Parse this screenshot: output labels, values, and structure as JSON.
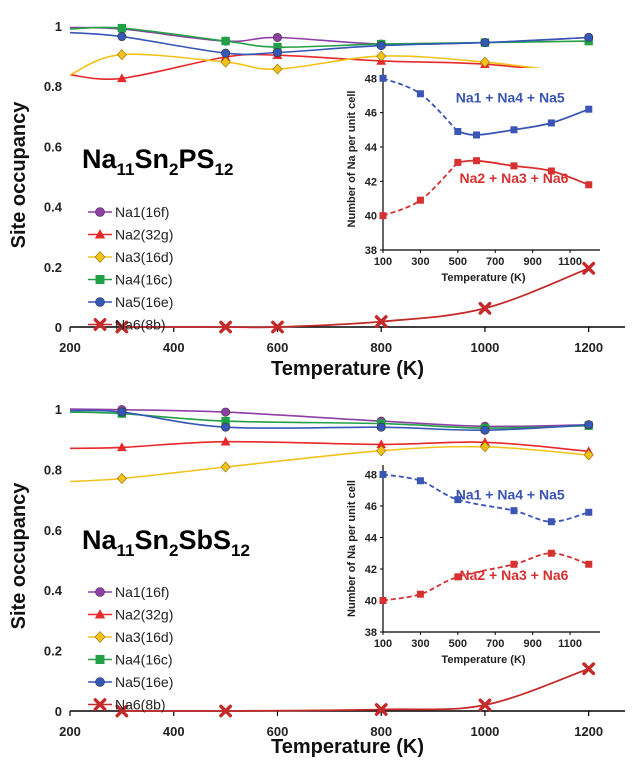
{
  "colors": {
    "Na1": "#8e3fa6",
    "Na2": "#e8282b",
    "Na3": "#f2c21b",
    "Na4": "#22a045",
    "Na5": "#3557b7",
    "Na6": "#c42a2a",
    "inset_upper": "#3a55b4",
    "inset_lower": "#d63031"
  },
  "chart_data": [
    {
      "type": "line",
      "compound": {
        "base": "Na",
        "s1": "11",
        "mid": "Sn",
        "s2": "2",
        "anion": "PS",
        "s3": "12"
      },
      "xlabel": "Temperature (K)",
      "ylabel": "Site occupancy",
      "xlim": [
        200,
        1270
      ],
      "ylim": [
        0,
        1.02
      ],
      "xticks": [
        "200",
        "400",
        "600",
        "800",
        "1000",
        "1200"
      ],
      "yticks": [
        "0",
        "0.2",
        "0.4",
        "0.6",
        "0.8",
        "1"
      ],
      "legend_position": "left",
      "series": [
        {
          "name": "Na1(16f)",
          "key": "Na1",
          "marker": "circle",
          "x": [
            200,
            300,
            500,
            600,
            800,
            1000,
            1200
          ],
          "y": [
            0.995,
            0.99,
            0.95,
            0.962,
            0.94,
            0.945,
            0.962
          ]
        },
        {
          "name": "Na2(32g)",
          "key": "Na2",
          "marker": "triangle",
          "x": [
            200,
            300,
            500,
            600,
            800,
            1000,
            1200
          ],
          "y": [
            0.838,
            0.826,
            0.897,
            0.903,
            0.884,
            0.873,
            0.838
          ]
        },
        {
          "name": "Na3(16d)",
          "key": "Na3",
          "marker": "diamond",
          "x": [
            200,
            300,
            500,
            600,
            800,
            1000,
            1200
          ],
          "y": [
            0.838,
            0.905,
            0.88,
            0.857,
            0.9,
            0.88,
            0.838
          ]
        },
        {
          "name": "Na4(16c)",
          "key": "Na4",
          "marker": "square",
          "x": [
            200,
            300,
            500,
            600,
            800,
            1000,
            1200
          ],
          "y": [
            0.99,
            0.993,
            0.95,
            0.93,
            0.94,
            0.945,
            0.95
          ]
        },
        {
          "name": "Na5(16e)",
          "key": "Na5",
          "marker": "circle",
          "x": [
            200,
            300,
            500,
            600,
            800,
            1000,
            1200
          ],
          "y": [
            0.978,
            0.965,
            0.91,
            0.912,
            0.935,
            0.945,
            0.962
          ]
        },
        {
          "name": "Na6(8b)",
          "key": "Na6",
          "marker": "x",
          "x": [
            300,
            500,
            600,
            800,
            1000,
            1200
          ],
          "y": [
            0.0,
            0.0,
            0.0,
            0.018,
            0.062,
            0.195
          ]
        }
      ],
      "inset": {
        "ylabel": "Number of Na per unit cell",
        "xlabel": "Temperature  (K)",
        "xlim": [
          100,
          1260
        ],
        "ylim": [
          38,
          48.6
        ],
        "xticks": [
          "100",
          "300",
          "500",
          "700",
          "900",
          "1100"
        ],
        "yticks": [
          "38",
          "40",
          "42",
          "44",
          "46",
          "48"
        ],
        "series": [
          {
            "name": "Na1 + Na4 + Na5",
            "key": "inset_upper",
            "x": [
              100,
              300,
              500,
              600,
              800,
              1000,
              1200
            ],
            "y": [
              48.0,
              47.1,
              44.9,
              44.7,
              45.0,
              45.4,
              46.2
            ],
            "dashed_until_index": 2
          },
          {
            "name": "Na2 + Na3 + Na6",
            "key": "inset_lower",
            "x": [
              100,
              300,
              500,
              600,
              800,
              1000,
              1200
            ],
            "y": [
              40.0,
              40.9,
              43.1,
              43.2,
              42.9,
              42.6,
              41.8
            ],
            "dashed_until_index": 2
          }
        ]
      }
    },
    {
      "type": "line",
      "compound": {
        "base": "Na",
        "s1": "11",
        "mid": "Sn",
        "s2": "2",
        "anion": "SbS",
        "s3": "12"
      },
      "xlabel": "Temperature (K)",
      "ylabel": "Site occupancy",
      "xlim": [
        200,
        1270
      ],
      "ylim": [
        0,
        1.03
      ],
      "xticks": [
        "200",
        "400",
        "600",
        "800",
        "1000",
        "1200"
      ],
      "yticks": [
        "0",
        "0.2",
        "0.4",
        "0.6",
        "0.8",
        "1"
      ],
      "legend_position": "left",
      "series": [
        {
          "name": "Na1(16f)",
          "key": "Na1",
          "marker": "circle",
          "x": [
            200,
            300,
            500,
            800,
            1000,
            1200
          ],
          "y": [
            1.0,
            0.998,
            0.99,
            0.96,
            0.943,
            0.948
          ]
        },
        {
          "name": "Na2(32g)",
          "key": "Na2",
          "marker": "triangle",
          "x": [
            200,
            300,
            500,
            800,
            1000,
            1200
          ],
          "y": [
            0.87,
            0.873,
            0.892,
            0.883,
            0.89,
            0.86
          ]
        },
        {
          "name": "Na3(16d)",
          "key": "Na3",
          "marker": "diamond",
          "x": [
            200,
            300,
            500,
            800,
            1000,
            1200
          ],
          "y": [
            0.76,
            0.77,
            0.808,
            0.862,
            0.875,
            0.848
          ]
        },
        {
          "name": "Na4(16c)",
          "key": "Na4",
          "marker": "square",
          "x": [
            200,
            300,
            500,
            800,
            1000,
            1200
          ],
          "y": [
            0.99,
            0.985,
            0.96,
            0.952,
            0.937,
            0.945
          ]
        },
        {
          "name": "Na5(16e)",
          "key": "Na5",
          "marker": "circle",
          "x": [
            200,
            300,
            500,
            800,
            1000,
            1200
          ],
          "y": [
            0.995,
            0.99,
            0.94,
            0.94,
            0.93,
            0.948
          ]
        },
        {
          "name": "Na6(8b)",
          "key": "Na6",
          "marker": "x",
          "x": [
            300,
            500,
            800,
            1000,
            1200
          ],
          "y": [
            0.0,
            0.0,
            0.005,
            0.02,
            0.14
          ]
        }
      ],
      "inset": {
        "ylabel": "Number of Na per unit cell",
        "xlabel": "Temperature  (K)",
        "xlim": [
          100,
          1260
        ],
        "ylim": [
          38,
          48.6
        ],
        "xticks": [
          "100",
          "300",
          "500",
          "700",
          "900",
          "1100"
        ],
        "yticks": [
          "38",
          "40",
          "42",
          "44",
          "46",
          "48"
        ],
        "series": [
          {
            "name": "Na1 + Na4 + Na5",
            "key": "inset_upper",
            "x": [
              100,
              300,
              500,
              800,
              1000,
              1200
            ],
            "y": [
              48.0,
              47.6,
              46.4,
              45.7,
              45.0,
              45.6
            ],
            "dashed_until_index": 5
          },
          {
            "name": "Na2 + Na3 + Na6",
            "key": "inset_lower",
            "x": [
              100,
              300,
              500,
              800,
              1000,
              1200
            ],
            "y": [
              40.0,
              40.4,
              41.5,
              42.3,
              43.0,
              42.3
            ],
            "dashed_until_index": 5
          }
        ]
      }
    }
  ]
}
